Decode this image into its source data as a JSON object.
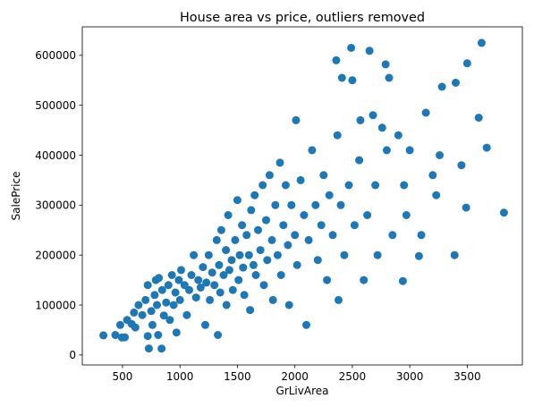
{
  "chart_data": {
    "type": "scatter",
    "title": "House area vs price, outliers removed",
    "xlabel": "GrLivArea",
    "ylabel": "SalePrice",
    "xlim": [
      150,
      3980
    ],
    "ylim": [
      -20000,
      657000
    ],
    "xticks": [
      500,
      1000,
      1500,
      2000,
      2500,
      3000,
      3500
    ],
    "yticks": [
      0,
      100000,
      200000,
      300000,
      400000,
      500000,
      600000
    ],
    "grid": false,
    "legend": "none",
    "marker_color": "#1f77b4",
    "points": [
      [
        334,
        39300
      ],
      [
        438,
        40000
      ],
      [
        480,
        60000
      ],
      [
        495,
        35000
      ],
      [
        520,
        35311
      ],
      [
        540,
        70000
      ],
      [
        580,
        62000
      ],
      [
        600,
        85000
      ],
      [
        612,
        55000
      ],
      [
        640,
        100000
      ],
      [
        672,
        80000
      ],
      [
        700,
        110000
      ],
      [
        720,
        37900
      ],
      [
        720,
        140000
      ],
      [
        729,
        13000
      ],
      [
        750,
        88000
      ],
      [
        760,
        60000
      ],
      [
        780,
        120000
      ],
      [
        790,
        150000
      ],
      [
        800,
        100000
      ],
      [
        810,
        40000
      ],
      [
        816,
        154000
      ],
      [
        840,
        12789
      ],
      [
        845,
        130000
      ],
      [
        860,
        79000
      ],
      [
        880,
        105000
      ],
      [
        900,
        140000
      ],
      [
        912,
        70000
      ],
      [
        930,
        160000
      ],
      [
        945,
        100000
      ],
      [
        960,
        125000
      ],
      [
        970,
        45000
      ],
      [
        990,
        150000
      ],
      [
        1000,
        110000
      ],
      [
        1010,
        170000
      ],
      [
        1040,
        140000
      ],
      [
        1060,
        80000
      ],
      [
        1080,
        130000
      ],
      [
        1100,
        160000
      ],
      [
        1120,
        199900
      ],
      [
        1140,
        115000
      ],
      [
        1160,
        150000
      ],
      [
        1180,
        135000
      ],
      [
        1200,
        176000
      ],
      [
        1220,
        60000
      ],
      [
        1230,
        145000
      ],
      [
        1250,
        200000
      ],
      [
        1260,
        110000
      ],
      [
        1280,
        165000
      ],
      [
        1300,
        140000
      ],
      [
        1320,
        230000
      ],
      [
        1330,
        40000
      ],
      [
        1340,
        180000
      ],
      [
        1350,
        125000
      ],
      [
        1360,
        250000
      ],
      [
        1380,
        160000
      ],
      [
        1400,
        210000
      ],
      [
        1405,
        100000
      ],
      [
        1420,
        280000
      ],
      [
        1430,
        170000
      ],
      [
        1450,
        190000
      ],
      [
        1460,
        130000
      ],
      [
        1480,
        230000
      ],
      [
        1500,
        310000
      ],
      [
        1510,
        150000
      ],
      [
        1520,
        200000
      ],
      [
        1540,
        260000
      ],
      [
        1550,
        175000
      ],
      [
        1560,
        120000
      ],
      [
        1580,
        240000
      ],
      [
        1600,
        200000
      ],
      [
        1610,
        90000
      ],
      [
        1620,
        290000
      ],
      [
        1640,
        180000
      ],
      [
        1650,
        320000
      ],
      [
        1660,
        160000
      ],
      [
        1680,
        250000
      ],
      [
        1700,
        210000
      ],
      [
        1720,
        340000
      ],
      [
        1730,
        140000
      ],
      [
        1750,
        270000
      ],
      [
        1760,
        190000
      ],
      [
        1780,
        360000
      ],
      [
        1800,
        230000
      ],
      [
        1810,
        110000
      ],
      [
        1830,
        300000
      ],
      [
        1850,
        200000
      ],
      [
        1870,
        385000
      ],
      [
        1880,
        160000
      ],
      [
        1900,
        260000
      ],
      [
        1920,
        340000
      ],
      [
        1940,
        220000
      ],
      [
        1950,
        100000
      ],
      [
        1970,
        300000
      ],
      [
        2000,
        240000
      ],
      [
        2010,
        470000
      ],
      [
        2020,
        180000
      ],
      [
        2050,
        350000
      ],
      [
        2080,
        280000
      ],
      [
        2100,
        60000
      ],
      [
        2120,
        230000
      ],
      [
        2150,
        410000
      ],
      [
        2180,
        300000
      ],
      [
        2200,
        190000
      ],
      [
        2230,
        260000
      ],
      [
        2250,
        360000
      ],
      [
        2280,
        150000
      ],
      [
        2300,
        320000
      ],
      [
        2330,
        240000
      ],
      [
        2360,
        590000
      ],
      [
        2370,
        440000
      ],
      [
        2380,
        110000
      ],
      [
        2400,
        300000
      ],
      [
        2410,
        555000
      ],
      [
        2430,
        200000
      ],
      [
        2470,
        340000
      ],
      [
        2490,
        615000
      ],
      [
        2500,
        550000
      ],
      [
        2520,
        260000
      ],
      [
        2560,
        390000
      ],
      [
        2570,
        470000
      ],
      [
        2600,
        150000
      ],
      [
        2630,
        280000
      ],
      [
        2650,
        609000
      ],
      [
        2680,
        480000
      ],
      [
        2700,
        340000
      ],
      [
        2720,
        200000
      ],
      [
        2760,
        455000
      ],
      [
        2790,
        582000
      ],
      [
        2800,
        410000
      ],
      [
        2820,
        555000
      ],
      [
        2850,
        240000
      ],
      [
        2900,
        440000
      ],
      [
        2940,
        148000
      ],
      [
        2950,
        340000
      ],
      [
        2970,
        280000
      ],
      [
        3000,
        410000
      ],
      [
        3080,
        198000
      ],
      [
        3100,
        240000
      ],
      [
        3140,
        485000
      ],
      [
        3200,
        360000
      ],
      [
        3230,
        320000
      ],
      [
        3260,
        400000
      ],
      [
        3280,
        537000
      ],
      [
        3390,
        200000
      ],
      [
        3400,
        545000
      ],
      [
        3450,
        380000
      ],
      [
        3490,
        295000
      ],
      [
        3500,
        584000
      ],
      [
        3600,
        475000
      ],
      [
        3625,
        625000
      ],
      [
        3670,
        415000
      ],
      [
        3820,
        285000
      ]
    ]
  }
}
